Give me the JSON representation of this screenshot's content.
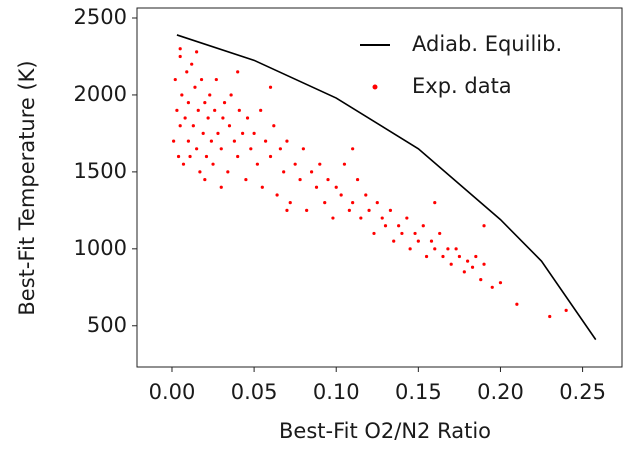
{
  "chart_data": {
    "type": "scatter",
    "x_label": "Best-Fit O2/N2 Ratio",
    "y_label": "Best-Fit Temperature (K)",
    "xlim": [
      -0.0213,
      0.274
    ],
    "ylim": [
      232,
      2565
    ],
    "xticks": [
      {
        "value": 0,
        "label": "0.00"
      },
      {
        "value": 0.05,
        "label": "0.05"
      },
      {
        "value": 0.1,
        "label": "0.10"
      },
      {
        "value": 0.15,
        "label": "0.15"
      },
      {
        "value": 0.2,
        "label": "0.20"
      },
      {
        "value": 0.25,
        "label": "0.25"
      }
    ],
    "yticks": [
      500,
      1000,
      1500,
      2000,
      2500
    ],
    "legend": "upper right",
    "series": [
      {
        "name": "Adiab. Equilib.",
        "style": "line",
        "color": "#000000",
        "x": [
          0.003,
          0.05,
          0.1,
          0.15,
          0.2,
          0.225,
          0.258
        ],
        "values": [
          2390,
          2225,
          1980,
          1650,
          1190,
          920,
          410
        ]
      },
      {
        "name": "Exp. data",
        "style": "points",
        "color": "#ff0000",
        "x": [
          0.001,
          0.002,
          0.003,
          0.004,
          0.005,
          0.005,
          0.006,
          0.007,
          0.008,
          0.009,
          0.01,
          0.01,
          0.011,
          0.012,
          0.013,
          0.014,
          0.015,
          0.016,
          0.017,
          0.018,
          0.019,
          0.02,
          0.021,
          0.022,
          0.023,
          0.024,
          0.025,
          0.026,
          0.027,
          0.028,
          0.03,
          0.031,
          0.032,
          0.034,
          0.035,
          0.036,
          0.038,
          0.04,
          0.041,
          0.043,
          0.045,
          0.046,
          0.048,
          0.05,
          0.052,
          0.054,
          0.055,
          0.057,
          0.06,
          0.062,
          0.064,
          0.066,
          0.068,
          0.07,
          0.072,
          0.075,
          0.078,
          0.08,
          0.082,
          0.085,
          0.088,
          0.09,
          0.093,
          0.095,
          0.098,
          0.1,
          0.103,
          0.105,
          0.108,
          0.11,
          0.113,
          0.115,
          0.118,
          0.12,
          0.123,
          0.125,
          0.128,
          0.13,
          0.133,
          0.135,
          0.138,
          0.14,
          0.143,
          0.145,
          0.148,
          0.15,
          0.153,
          0.155,
          0.158,
          0.16,
          0.163,
          0.165,
          0.168,
          0.17,
          0.173,
          0.175,
          0.178,
          0.18,
          0.183,
          0.185,
          0.188,
          0.19,
          0.195,
          0.2,
          0.21,
          0.23,
          0.24,
          0.005,
          0.015,
          0.02,
          0.04,
          0.06,
          0.03,
          0.07,
          0.11,
          0.16,
          0.19
        ],
        "values": [
          1700,
          2100,
          1900,
          1600,
          2250,
          1800,
          2000,
          1550,
          1850,
          2150,
          1950,
          1700,
          1600,
          2200,
          1800,
          2050,
          1650,
          1900,
          1500,
          2100,
          1750,
          1950,
          1600,
          1850,
          2000,
          1700,
          1550,
          1900,
          2100,
          1750,
          1650,
          1850,
          1950,
          1500,
          1800,
          2000,
          1700,
          1600,
          1900,
          1750,
          1450,
          1850,
          1650,
          1750,
          1550,
          1900,
          1400,
          1700,
          1600,
          1800,
          1350,
          1650,
          1500,
          1700,
          1300,
          1550,
          1450,
          1650,
          1250,
          1500,
          1400,
          1550,
          1300,
          1450,
          1200,
          1400,
          1350,
          1550,
          1250,
          1300,
          1450,
          1200,
          1350,
          1250,
          1100,
          1300,
          1200,
          1150,
          1250,
          1050,
          1150,
          1100,
          1200,
          1000,
          1100,
          1050,
          1150,
          950,
          1050,
          1000,
          1100,
          950,
          1000,
          900,
          1000,
          950,
          850,
          920,
          880,
          950,
          800,
          900,
          750,
          780,
          640,
          560,
          600,
          2300,
          2280,
          1450,
          2150,
          2050,
          1400,
          1250,
          1650,
          1300,
          1150
        ]
      }
    ]
  }
}
